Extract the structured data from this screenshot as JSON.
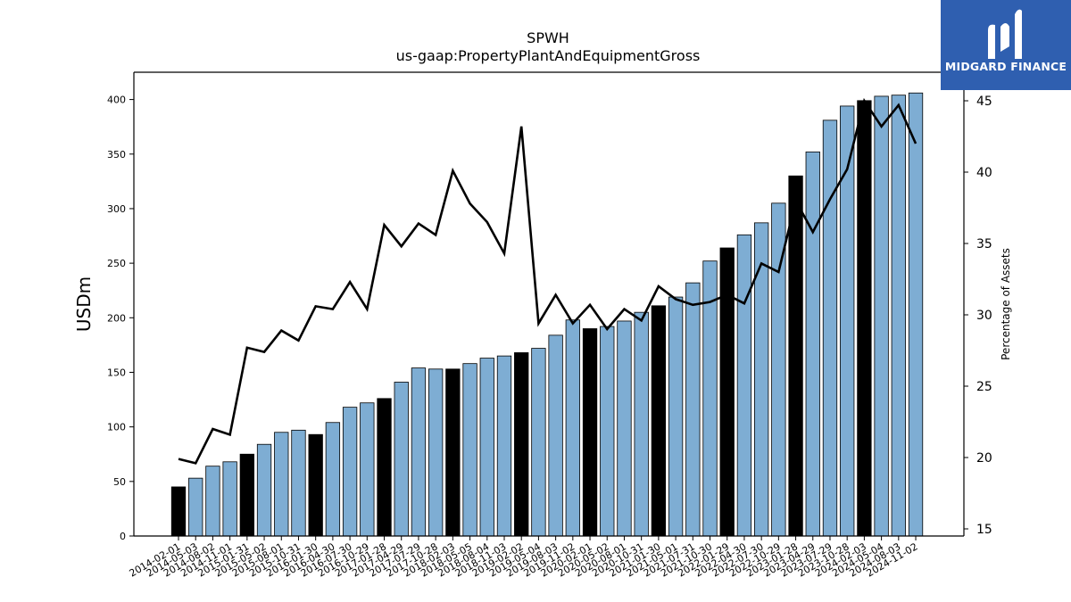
{
  "chart_data": {
    "type": "bar+line",
    "title": "SPWH",
    "subtitle": "us-gaap:PropertyPlantAndEquipmentGross",
    "ylabel": "USDm",
    "y2label": "Percentage of Assets",
    "ylim": [
      0,
      425
    ],
    "y2lim": [
      14.5,
      47
    ],
    "yticks": [
      0,
      50,
      100,
      150,
      200,
      250,
      300,
      350,
      400
    ],
    "y2ticks": [
      15,
      20,
      25,
      30,
      35,
      40,
      45
    ],
    "categories": [
      "2014-02-01",
      "2014-05-03",
      "2014-08-02",
      "2014-11-01",
      "2015-01-31",
      "2015-05-02",
      "2015-08-01",
      "2015-10-31",
      "2016-01-30",
      "2016-04-30",
      "2016-07-30",
      "2016-10-29",
      "2017-01-28",
      "2017-04-29",
      "2017-07-29",
      "2017-10-28",
      "2018-02-03",
      "2018-05-05",
      "2018-08-04",
      "2018-11-03",
      "2019-02-02",
      "2019-05-04",
      "2019-08-03",
      "2019-11-02",
      "2020-02-01",
      "2020-05-02",
      "2020-08-01",
      "2020-10-31",
      "2021-01-30",
      "2021-05-01",
      "2021-07-31",
      "2021-10-30",
      "2022-01-29",
      "2022-04-30",
      "2022-07-30",
      "2022-10-29",
      "2023-01-28",
      "2023-04-29",
      "2023-07-29",
      "2023-10-28",
      "2024-02-03",
      "2024-05-04",
      "2024-08-03",
      "2024-11-02"
    ],
    "series": [
      {
        "kind": "bar",
        "values": [
          45,
          53,
          64,
          68,
          75,
          84,
          95,
          97,
          93,
          104,
          118,
          122,
          126,
          141,
          154,
          153,
          153,
          158,
          163,
          165,
          168,
          172,
          184,
          198,
          190,
          192,
          197,
          205,
          211,
          219,
          232,
          252,
          264,
          276,
          287,
          305,
          330,
          352,
          381,
          394,
          399,
          403,
          404,
          406
        ],
        "highlight_categories": [
          "2014-02-01",
          "2015-01-31",
          "2016-01-30",
          "2017-01-28",
          "2018-02-03",
          "2019-02-02",
          "2020-02-01",
          "2021-01-30",
          "2022-01-29",
          "2023-01-28",
          "2024-02-03"
        ]
      },
      {
        "kind": "line",
        "axis": "right",
        "values": [
          19.9,
          19.6,
          22.0,
          21.6,
          27.7,
          27.4,
          28.9,
          28.2,
          30.6,
          30.4,
          32.3,
          30.4,
          36.3,
          34.8,
          36.4,
          35.6,
          40.1,
          37.8,
          36.5,
          34.3,
          43.2,
          29.4,
          31.4,
          29.4,
          30.7,
          29.0,
          30.4,
          29.6,
          32.0,
          31.1,
          30.7,
          30.9,
          31.4,
          30.8,
          33.6,
          33.0,
          38.0,
          35.8,
          38.1,
          40.2,
          45.0,
          43.2,
          44.7,
          42.0
        ]
      }
    ],
    "colors": {
      "bar": "#7eadd3",
      "bar_highlight": "#000000",
      "line": "#000000",
      "logo_bg": "#2f5fb0"
    },
    "grid": false,
    "legend": "none"
  },
  "logo": {
    "text": "MIDGARD FINANCE",
    "icon": "midgard-logo-icon"
  }
}
